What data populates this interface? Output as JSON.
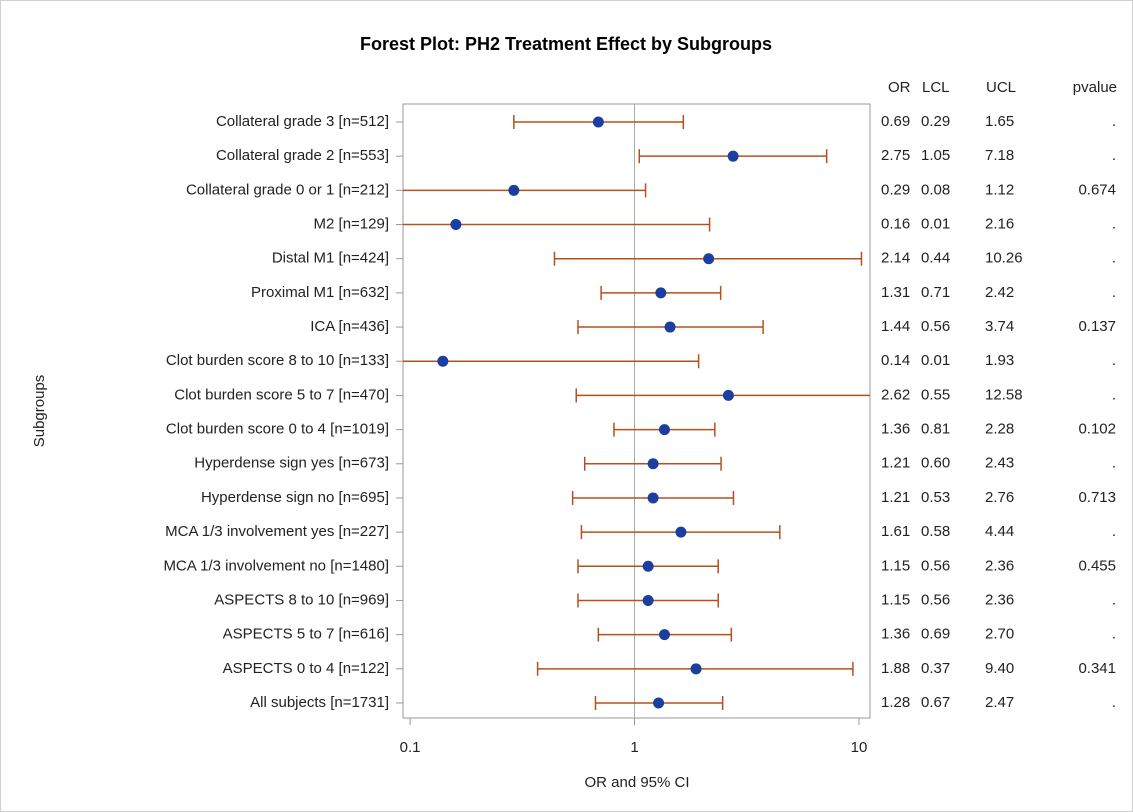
{
  "chart_data": {
    "type": "forest",
    "title": "Forest Plot: PH2 Treatment Effect by Subgroups",
    "x_label": "OR and 95% CI",
    "y_label": "Subgroups",
    "categories": [
      "Collateral grade 3 [n=512]",
      "Collateral grade 2 [n=553]",
      "Collateral grade 0 or 1 [n=212]",
      "M2 [n=129]",
      "Distal M1 [n=424]",
      "Proximal M1 [n=632]",
      "ICA [n=436]",
      "Clot burden score 8 to 10 [n=133]",
      "Clot burden score 5 to 7 [n=470]",
      "Clot burden score 0 to 4 [n=1019]",
      "Hyperdense sign yes [n=673]",
      "Hyperdense sign no [n=695]",
      "MCA 1/3 involvement yes [n=227]",
      "MCA 1/3 involvement no [n=1480]",
      "ASPECTS 8 to 10 [n=969]",
      "ASPECTS 5 to 7 [n=616]",
      "ASPECTS 0 to 4 [n=122]",
      "All subjects [n=1731]"
    ],
    "columns": [
      {
        "name": "OR",
        "values": [
          0.69,
          2.75,
          0.29,
          0.16,
          2.14,
          1.31,
          1.44,
          0.14,
          2.62,
          1.36,
          1.21,
          1.21,
          1.61,
          1.15,
          1.15,
          1.36,
          1.88,
          1.28
        ],
        "value_labels": [
          "0.69",
          "2.75",
          "0.29",
          "0.16",
          "2.14",
          "1.31",
          "1.44",
          "0.14",
          "2.62",
          "1.36",
          "1.21",
          "1.21",
          "1.61",
          "1.15",
          "1.15",
          "1.36",
          "1.88",
          "1.28"
        ]
      },
      {
        "name": "LCL",
        "values": [
          0.29,
          1.05,
          0.08,
          0.01,
          0.44,
          0.71,
          0.56,
          0.01,
          0.55,
          0.81,
          0.6,
          0.53,
          0.58,
          0.56,
          0.56,
          0.69,
          0.37,
          0.67
        ],
        "value_labels": [
          "0.29",
          "1.05",
          "0.08",
          "0.01",
          "0.44",
          "0.71",
          "0.56",
          "0.01",
          "0.55",
          "0.81",
          "0.60",
          "0.53",
          "0.58",
          "0.56",
          "0.56",
          "0.69",
          "0.37",
          "0.67"
        ]
      },
      {
        "name": "UCL",
        "values": [
          1.65,
          7.18,
          1.12,
          2.16,
          10.26,
          2.42,
          3.74,
          1.93,
          12.58,
          2.28,
          2.43,
          2.76,
          4.44,
          2.36,
          2.36,
          2.7,
          9.4,
          2.47
        ],
        "value_labels": [
          "1.65",
          "7.18",
          "1.12",
          "2.16",
          "10.26",
          "2.42",
          "3.74",
          "1.93",
          "12.58",
          "2.28",
          "2.43",
          "2.76",
          "4.44",
          "2.36",
          "2.36",
          "2.70",
          "9.40",
          "2.47"
        ]
      }
    ],
    "pvalue_header": "pvalue",
    "pvalues": [
      ".",
      ".",
      "0.674",
      ".",
      ".",
      ".",
      "0.137",
      ".",
      ".",
      "0.102",
      ".",
      "0.713",
      ".",
      "0.455",
      ".",
      ".",
      "0.341",
      "."
    ],
    "xscale": "log",
    "xlim": [
      0.093,
      11.2
    ],
    "xticks": [
      0.1,
      1,
      10
    ],
    "reference_line": 1,
    "marker_color": "#1a3fa0",
    "ci_color": "#b5501e"
  }
}
